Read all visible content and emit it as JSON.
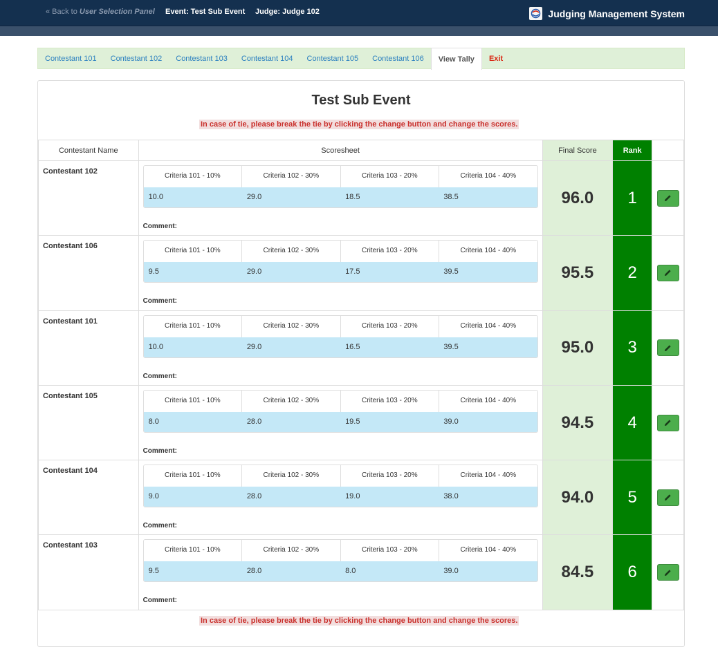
{
  "navbar": {
    "back_prefix": "« Back to",
    "back_target": "User Selection Panel",
    "event": "Event: Test Sub Event",
    "judge": "Judge: Judge 102",
    "brand": "Judging Management System"
  },
  "tabs": [
    {
      "label": "Contestant 101"
    },
    {
      "label": "Contestant 102"
    },
    {
      "label": "Contestant 103"
    },
    {
      "label": "Contestant 104"
    },
    {
      "label": "Contestant 105"
    },
    {
      "label": "Contestant 106"
    },
    {
      "label": "View Tally"
    },
    {
      "label": "Exit"
    }
  ],
  "panel": {
    "title": "Test Sub Event",
    "tie_note": "In case of tie, please break the tie by clicking the change button and change the scores."
  },
  "table": {
    "headers": {
      "name": "Contestant Name",
      "sheet": "Scoresheet",
      "final": "Final Score",
      "rank": "Rank"
    },
    "criteria": [
      "Criteria 101 - 10%",
      "Criteria 102 - 30%",
      "Criteria 103 - 20%",
      "Criteria 104 - 40%"
    ],
    "comment_label": "Comment:",
    "rows": [
      {
        "name": "Contestant 102",
        "scores": [
          "10.0",
          "29.0",
          "18.5",
          "38.5"
        ],
        "final": "96.0",
        "rank": "1"
      },
      {
        "name": "Contestant 106",
        "scores": [
          "9.5",
          "29.0",
          "17.5",
          "39.5"
        ],
        "final": "95.5",
        "rank": "2"
      },
      {
        "name": "Contestant 101",
        "scores": [
          "10.0",
          "29.0",
          "16.5",
          "39.5"
        ],
        "final": "95.0",
        "rank": "3"
      },
      {
        "name": "Contestant 105",
        "scores": [
          "8.0",
          "28.0",
          "19.5",
          "39.0"
        ],
        "final": "94.5",
        "rank": "4"
      },
      {
        "name": "Contestant 104",
        "scores": [
          "9.0",
          "28.0",
          "19.0",
          "38.0"
        ],
        "final": "94.0",
        "rank": "5"
      },
      {
        "name": "Contestant 103",
        "scores": [
          "9.5",
          "28.0",
          "8.0",
          "39.0"
        ],
        "final": "84.5",
        "rank": "6"
      }
    ]
  },
  "colors": {
    "navbar": "#14304f",
    "tab_bar": "#dff0d8",
    "rank_green": "#008000",
    "score_blue": "#c4e8f7",
    "edit_button": "#4cae4c",
    "warning_text": "#c9302c"
  },
  "icons": {
    "brand_logo": "logo-icon",
    "edit": "pencil-icon"
  }
}
